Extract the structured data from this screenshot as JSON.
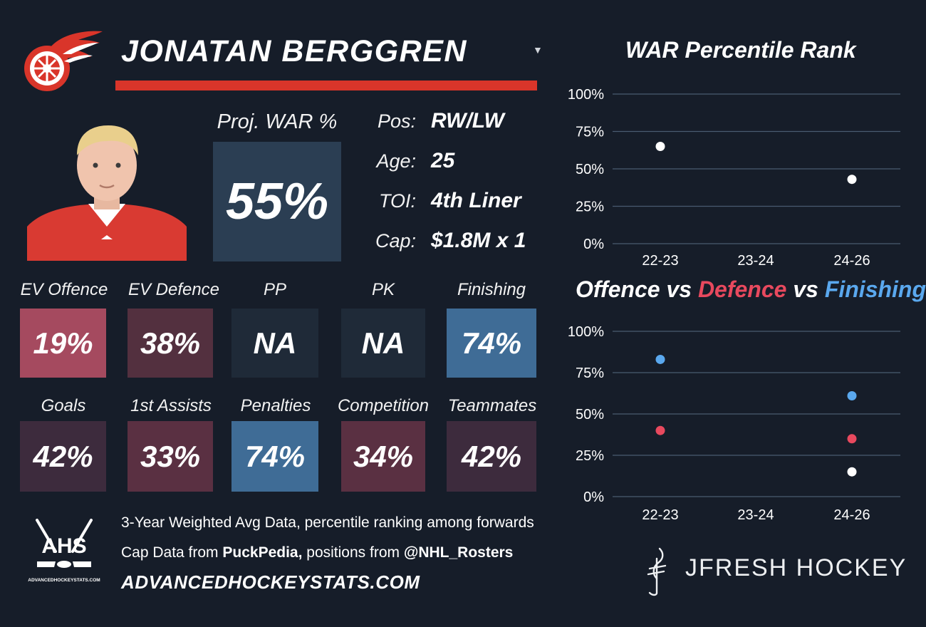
{
  "player": {
    "name": "JONATAN BERGGREN",
    "team_logo_icon": "red-wings-winged-wheel-icon",
    "photo_icon": "player-headshot",
    "proj_war_label": "Proj. WAR %",
    "proj_war_value": "55%"
  },
  "info": [
    {
      "label": "Pos:",
      "value": "RW/LW"
    },
    {
      "label": "Age:",
      "value": "25"
    },
    {
      "label": "TOI:",
      "value": "4th Liner"
    },
    {
      "label": "Cap:",
      "value": "$1.8M x 1"
    }
  ],
  "stats_row1": [
    {
      "label": "EV Offence",
      "value": "19%",
      "color": "#a54a5f"
    },
    {
      "label": "EV Defence",
      "value": "38%",
      "color": "#53303f"
    },
    {
      "label": "PP",
      "value": "NA",
      "color": "#1f2a38"
    },
    {
      "label": "PK",
      "value": "NA",
      "color": "#1f2a38"
    },
    {
      "label": "Finishing",
      "value": "74%",
      "color": "#3f6c96"
    }
  ],
  "stats_row2": [
    {
      "label": "Goals",
      "value": "42%",
      "color": "#3d2b3d"
    },
    {
      "label": "1st Assists",
      "value": "33%",
      "color": "#5a3042"
    },
    {
      "label": "Penalties",
      "value": "74%",
      "color": "#3f6c96"
    },
    {
      "label": "Competition",
      "value": "34%",
      "color": "#5a3042"
    },
    {
      "label": "Teammates",
      "value": "42%",
      "color": "#3d2b3d"
    }
  ],
  "chart_data": [
    {
      "type": "scatter",
      "title": "WAR Percentile Rank",
      "categories": [
        "22-23",
        "23-24",
        "24-26"
      ],
      "y_ticks": [
        "100%",
        "75%",
        "50%",
        "25%",
        "0%"
      ],
      "ylim": [
        0,
        100
      ],
      "grid": true,
      "series": [
        {
          "values": [
            65,
            null,
            43
          ],
          "color": "#ffffff"
        }
      ]
    },
    {
      "type": "scatter",
      "title_parts": [
        {
          "text": "Offence",
          "color": "#ffffff"
        },
        {
          "text": " vs ",
          "color": "#ffffff"
        },
        {
          "text": "Defence",
          "color": "#e8495e"
        },
        {
          "text": " vs ",
          "color": "#ffffff"
        },
        {
          "text": "Finishing",
          "color": "#5aa8ee"
        }
      ],
      "categories": [
        "22-23",
        "23-24",
        "24-26"
      ],
      "y_ticks": [
        "100%",
        "75%",
        "50%",
        "25%",
        "0%"
      ],
      "ylim": [
        0,
        100
      ],
      "grid": true,
      "series": [
        {
          "name": "Offence",
          "values": [
            null,
            null,
            15
          ],
          "color": "#ffffff"
        },
        {
          "name": "Defence",
          "values": [
            40,
            null,
            35
          ],
          "color": "#e8495e"
        },
        {
          "name": "Finishing",
          "values": [
            83,
            null,
            61
          ],
          "color": "#5aa8ee"
        }
      ]
    }
  ],
  "footer": {
    "ahs_logo_icon": "ahs-logo",
    "ahs_text": "AHS",
    "ahs_url_small": "ADVANCEDHOCKEYSTATS.COM",
    "line1": "3-Year Weighted Avg Data, percentile ranking among forwards",
    "line2_pre": "Cap Data from ",
    "line2_b1": "PuckPedia,",
    "line2_mid": " positions from ",
    "line2_b2": "@NHL_Rosters",
    "site": "ADVANCEDHOCKEYSTATS.COM",
    "brand_icon": "jfresh-logo-icon",
    "brand": "JFRESH HOCKEY"
  },
  "colors": {
    "background": "#161d29",
    "accent_red": "#d9352a",
    "grid": "#4a5b70"
  }
}
